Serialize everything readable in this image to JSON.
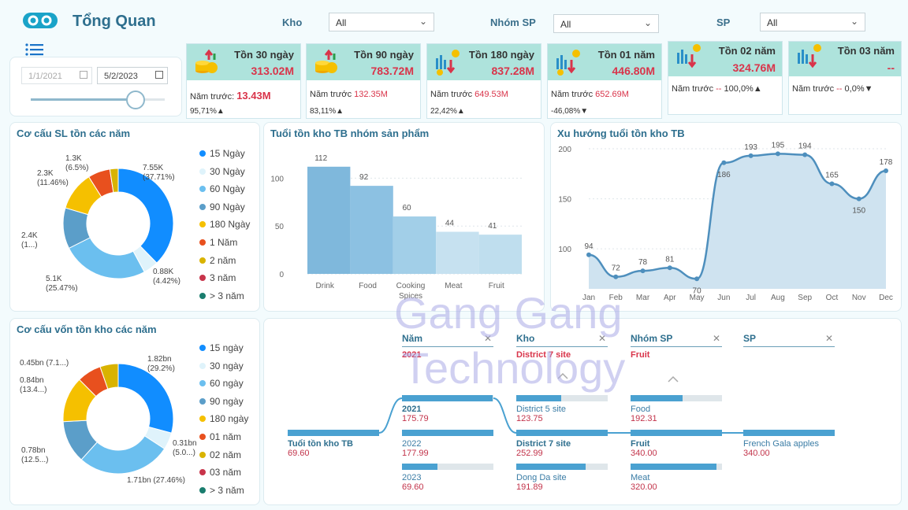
{
  "header": {
    "title": "Tổng Quan",
    "filters": [
      {
        "label": "Kho",
        "value": "All"
      },
      {
        "label": "Nhóm SP",
        "value": "All"
      },
      {
        "label": "SP",
        "value": "All"
      }
    ]
  },
  "date_filter": {
    "start": "1/1/2021",
    "end": "5/2/2023"
  },
  "kpis": [
    {
      "title": "Tồn 30 ngày",
      "value": "313.02M",
      "prev_label": "Năm trước:",
      "prev_value": "13.43M",
      "pct": "95,71%▲"
    },
    {
      "title": "Tồn 90 ngày",
      "value": "783.72M",
      "prev_label": "Năm trước",
      "prev_value": "132.35M",
      "pct": "83,11%▲"
    },
    {
      "title": "Tồn 180 ngày",
      "value": "837.28M",
      "prev_label": "Năm trước",
      "prev_value": "649.53M",
      "pct": "22,42%▲"
    },
    {
      "title": "Tồn 01 năm",
      "value": "446.80M",
      "prev_label": "Năm trước",
      "prev_value": "652.69M",
      "pct": "-46,08%▼"
    },
    {
      "title": "Tồn 02 năm",
      "value": "324.76M",
      "prev_label": "Năm trước",
      "prev_value": "--",
      "pct": "100,0%▲"
    },
    {
      "title": "Tồn 03 năm",
      "value": "--",
      "prev_label": "Năm trước",
      "prev_value": "--",
      "pct": "0,0%▼"
    }
  ],
  "colors": {
    "c1": "#118dff",
    "c2": "#dff3fb",
    "c3": "#6bbfef",
    "c4": "#5b9ec9",
    "c5": "#f5c000",
    "c6": "#e8501e",
    "c7": "#d9b300",
    "c8": "#c8344a",
    "c9": "#1a7d6e"
  },
  "donut1": {
    "title": "Cơ cấu SL tồn các năm",
    "legend": [
      "15 Ngày",
      "30 Ngày",
      "60 Ngày",
      "90 Ngày",
      "180 Ngày",
      "1 Năm",
      "2 năm",
      "3 năm",
      "> 3 năm"
    ],
    "labels": [
      {
        "v": "7.55K",
        "p": "(37.71%)"
      },
      {
        "v": "0.88K",
        "p": "(4.42%)"
      },
      {
        "v": "5.1K",
        "p": "(25.47%)"
      },
      {
        "v": "2.4K",
        "p": "(1...)"
      },
      {
        "v": "2.3K",
        "p": "(11.46%)"
      },
      {
        "v": "1.3K",
        "p": "(6.5%)"
      }
    ]
  },
  "donut2": {
    "title": "Cơ cấu vốn tồn kho các năm",
    "legend": [
      "15 ngày",
      "30 ngày",
      "60 ngày",
      "90 ngày",
      "180 ngày",
      "01 năm",
      "02 năm",
      "03 năm",
      "> 3 năm"
    ],
    "labels": [
      {
        "v": "1.82bn",
        "p": "(29.2%)"
      },
      {
        "v": "0.31bn",
        "p": "(5.0...)"
      },
      {
        "v": "1.71bn (27.46%)",
        "p": ""
      },
      {
        "v": "0.78bn",
        "p": "(12.5...)"
      },
      {
        "v": "0.84bn",
        "p": "(13.4...)"
      },
      {
        "v": "0.45bn (7.1...)",
        "p": ""
      }
    ]
  },
  "chart_data": [
    {
      "type": "area",
      "title": "Tuổi tồn kho TB nhóm sản phẩm",
      "categories": [
        "Drink",
        "Food",
        "Cooking Spices",
        "Meat",
        "Fruit"
      ],
      "values": [
        112,
        92,
        60,
        44,
        41
      ],
      "yticks": [
        0,
        50,
        100
      ],
      "ylim": [
        0,
        125
      ]
    },
    {
      "type": "line",
      "title": "Xu hướng tuổi tồn kho TB",
      "categories": [
        "Jan",
        "Feb",
        "Mar",
        "Apr",
        "May",
        "Jun",
        "Jul",
        "Aug",
        "Sep",
        "Oct",
        "Nov",
        "Dec"
      ],
      "values": [
        94,
        72,
        78,
        81,
        70,
        186,
        193,
        195,
        194,
        165,
        150,
        178
      ],
      "yticks": [
        100,
        150,
        200
      ],
      "ylim": [
        60,
        200
      ]
    },
    {
      "type": "pie",
      "title": "Cơ cấu SL tồn các năm",
      "categories": [
        "15 Ngày",
        "30 Ngày",
        "60 Ngày",
        "90 Ngày",
        "180 Ngày",
        "1 Năm",
        "2 năm",
        "3 năm",
        "> 3 năm"
      ],
      "values": [
        37.71,
        4.42,
        25.47,
        12.0,
        11.46,
        6.5,
        2.44,
        0,
        0
      ]
    },
    {
      "type": "pie",
      "title": "Cơ cấu vốn tồn kho các năm",
      "categories": [
        "15 ngày",
        "30 ngày",
        "60 ngày",
        "90 ngày",
        "180 ngày",
        "01 năm",
        "02 năm",
        "03 năm",
        "> 3 năm"
      ],
      "values": [
        29.2,
        5.0,
        27.46,
        12.5,
        13.4,
        7.1,
        5.34,
        0,
        0
      ]
    }
  ],
  "decomp": {
    "heads": [
      {
        "label": "Năm",
        "sel": "2021"
      },
      {
        "label": "Kho",
        "sel": "District 7 site"
      },
      {
        "label": "Nhóm SP",
        "sel": "Fruit"
      },
      {
        "label": "SP",
        "sel": ""
      }
    ],
    "root": {
      "label": "Tuổi tồn kho TB",
      "value": "69.60"
    },
    "years": [
      {
        "label": "2021",
        "value": "175.79"
      },
      {
        "label": "2022",
        "value": "177.99"
      },
      {
        "label": "2023",
        "value": "69.60"
      }
    ],
    "sites": [
      {
        "label": "District 5 site",
        "value": "123.75"
      },
      {
        "label": "District 7 site",
        "value": "252.99"
      },
      {
        "label": "Dong Da site",
        "value": "191.89"
      }
    ],
    "groups": [
      {
        "label": "Food",
        "value": "192.31"
      },
      {
        "label": "Fruit",
        "value": "340.00"
      },
      {
        "label": "Meat",
        "value": "320.00"
      }
    ],
    "products": [
      {
        "label": "French Gala apples",
        "value": "340.00"
      }
    ]
  },
  "watermark": {
    "line1": "Gang Gang",
    "line2": "Technology"
  }
}
